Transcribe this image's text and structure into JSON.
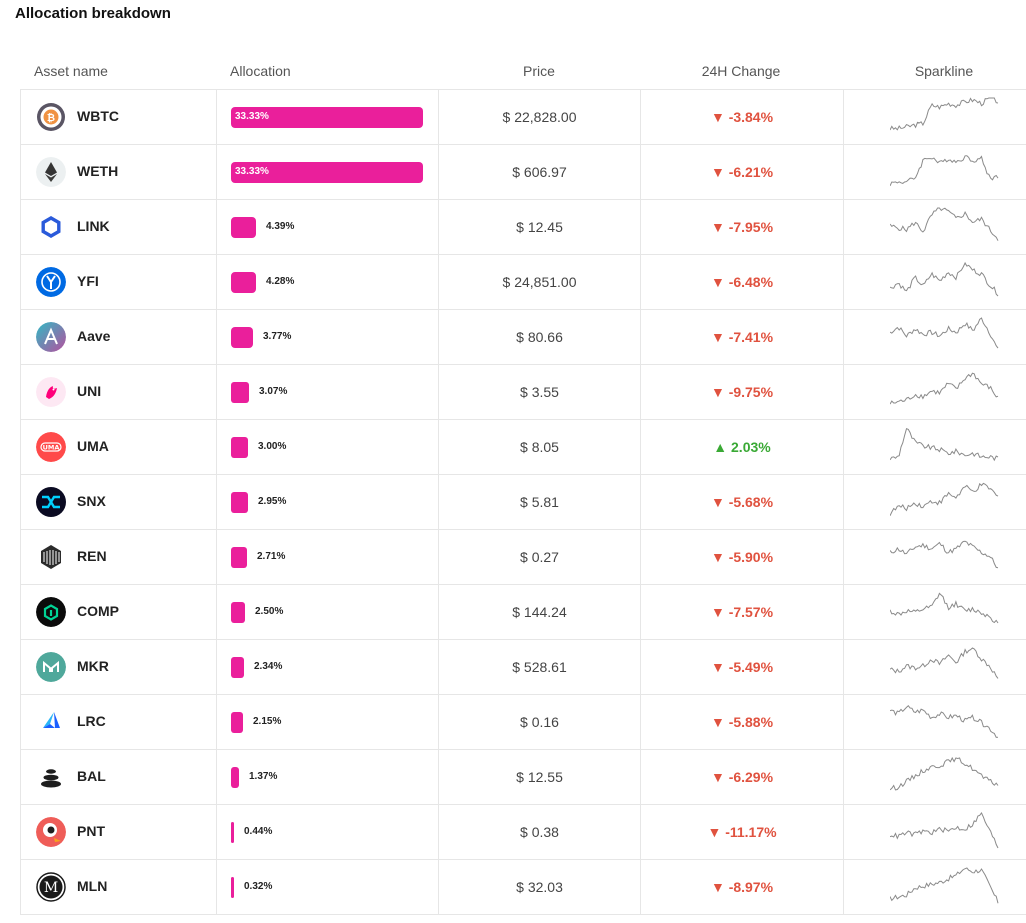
{
  "title": "Allocation breakdown",
  "columns": {
    "asset": "Asset name",
    "allocation": "Allocation",
    "price": "Price",
    "change": "24H Change",
    "sparkline": "Sparkline"
  },
  "colors": {
    "bar": "#ea1f9b",
    "negative": "#e0523f",
    "positive": "#3aa935"
  },
  "rows": [
    {
      "symbol": "WBTC",
      "allocation": "33.33%",
      "alloc_value": 33.33,
      "price": "$ 22,828.00",
      "change": "-3.84%",
      "dir": "down",
      "arrow": "▼",
      "icon": "wbtc-logo-icon"
    },
    {
      "symbol": "WETH",
      "allocation": "33.33%",
      "alloc_value": 33.33,
      "price": "$ 606.97",
      "change": "-6.21%",
      "dir": "down",
      "arrow": "▼",
      "icon": "weth-logo-icon"
    },
    {
      "symbol": "LINK",
      "allocation": "4.39%",
      "alloc_value": 4.39,
      "price": "$ 12.45",
      "change": "-7.95%",
      "dir": "down",
      "arrow": "▼",
      "icon": "link-logo-icon"
    },
    {
      "symbol": "YFI",
      "allocation": "4.28%",
      "alloc_value": 4.28,
      "price": "$ 24,851.00",
      "change": "-6.48%",
      "dir": "down",
      "arrow": "▼",
      "icon": "yfi-logo-icon"
    },
    {
      "symbol": "Aave",
      "allocation": "3.77%",
      "alloc_value": 3.77,
      "price": "$ 80.66",
      "change": "-7.41%",
      "dir": "down",
      "arrow": "▼",
      "icon": "aave-logo-icon"
    },
    {
      "symbol": "UNI",
      "allocation": "3.07%",
      "alloc_value": 3.07,
      "price": "$ 3.55",
      "change": "-9.75%",
      "dir": "down",
      "arrow": "▼",
      "icon": "uni-logo-icon"
    },
    {
      "symbol": "UMA",
      "allocation": "3.00%",
      "alloc_value": 3.0,
      "price": "$ 8.05",
      "change": "2.03%",
      "dir": "up",
      "arrow": "▲",
      "icon": "uma-logo-icon"
    },
    {
      "symbol": "SNX",
      "allocation": "2.95%",
      "alloc_value": 2.95,
      "price": "$ 5.81",
      "change": "-5.68%",
      "dir": "down",
      "arrow": "▼",
      "icon": "snx-logo-icon"
    },
    {
      "symbol": "REN",
      "allocation": "2.71%",
      "alloc_value": 2.71,
      "price": "$ 0.27",
      "change": "-5.90%",
      "dir": "down",
      "arrow": "▼",
      "icon": "ren-logo-icon"
    },
    {
      "symbol": "COMP",
      "allocation": "2.50%",
      "alloc_value": 2.5,
      "price": "$ 144.24",
      "change": "-7.57%",
      "dir": "down",
      "arrow": "▼",
      "icon": "comp-logo-icon"
    },
    {
      "symbol": "MKR",
      "allocation": "2.34%",
      "alloc_value": 2.34,
      "price": "$ 528.61",
      "change": "-5.49%",
      "dir": "down",
      "arrow": "▼",
      "icon": "mkr-logo-icon"
    },
    {
      "symbol": "LRC",
      "allocation": "2.15%",
      "alloc_value": 2.15,
      "price": "$ 0.16",
      "change": "-5.88%",
      "dir": "down",
      "arrow": "▼",
      "icon": "lrc-logo-icon"
    },
    {
      "symbol": "BAL",
      "allocation": "1.37%",
      "alloc_value": 1.37,
      "price": "$ 12.55",
      "change": "-6.29%",
      "dir": "down",
      "arrow": "▼",
      "icon": "bal-logo-icon"
    },
    {
      "symbol": "PNT",
      "allocation": "0.44%",
      "alloc_value": 0.44,
      "price": "$ 0.38",
      "change": "-11.17%",
      "dir": "down",
      "arrow": "▼",
      "icon": "pnt-logo-icon"
    },
    {
      "symbol": "MLN",
      "allocation": "0.32%",
      "alloc_value": 0.32,
      "price": "$ 32.03",
      "change": "-8.97%",
      "dir": "down",
      "arrow": "▼",
      "icon": "mln-logo-icon"
    }
  ]
}
